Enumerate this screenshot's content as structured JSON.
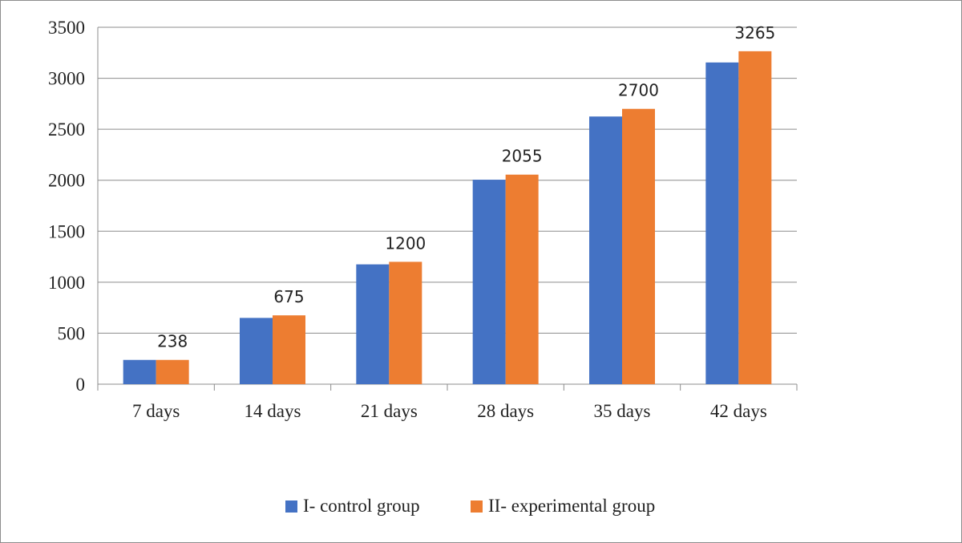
{
  "chart_data": {
    "type": "bar",
    "title": "",
    "xlabel": "",
    "ylabel": "",
    "categories": [
      "7 days",
      "14 days",
      "21 days",
      "28 days",
      "35 days",
      "42 days"
    ],
    "ylim": [
      0,
      3500
    ],
    "yticks": [
      "0",
      "500",
      "1000",
      "1500",
      "2000",
      "2500",
      "3000",
      "3500"
    ],
    "grid": true,
    "legend_position": "bottom",
    "series": [
      {
        "name": "I- control group",
        "color": "#4472C4",
        "values": [
          238,
          650,
          1175,
          2005,
          2625,
          3155
        ]
      },
      {
        "name": "II- experimental group",
        "color": "#ED7D31",
        "values": [
          238,
          675,
          1200,
          2055,
          2700,
          3265
        ]
      }
    ],
    "data_labels": [
      "238",
      "675",
      "1200",
      "2055",
      "2700",
      "3265"
    ]
  }
}
